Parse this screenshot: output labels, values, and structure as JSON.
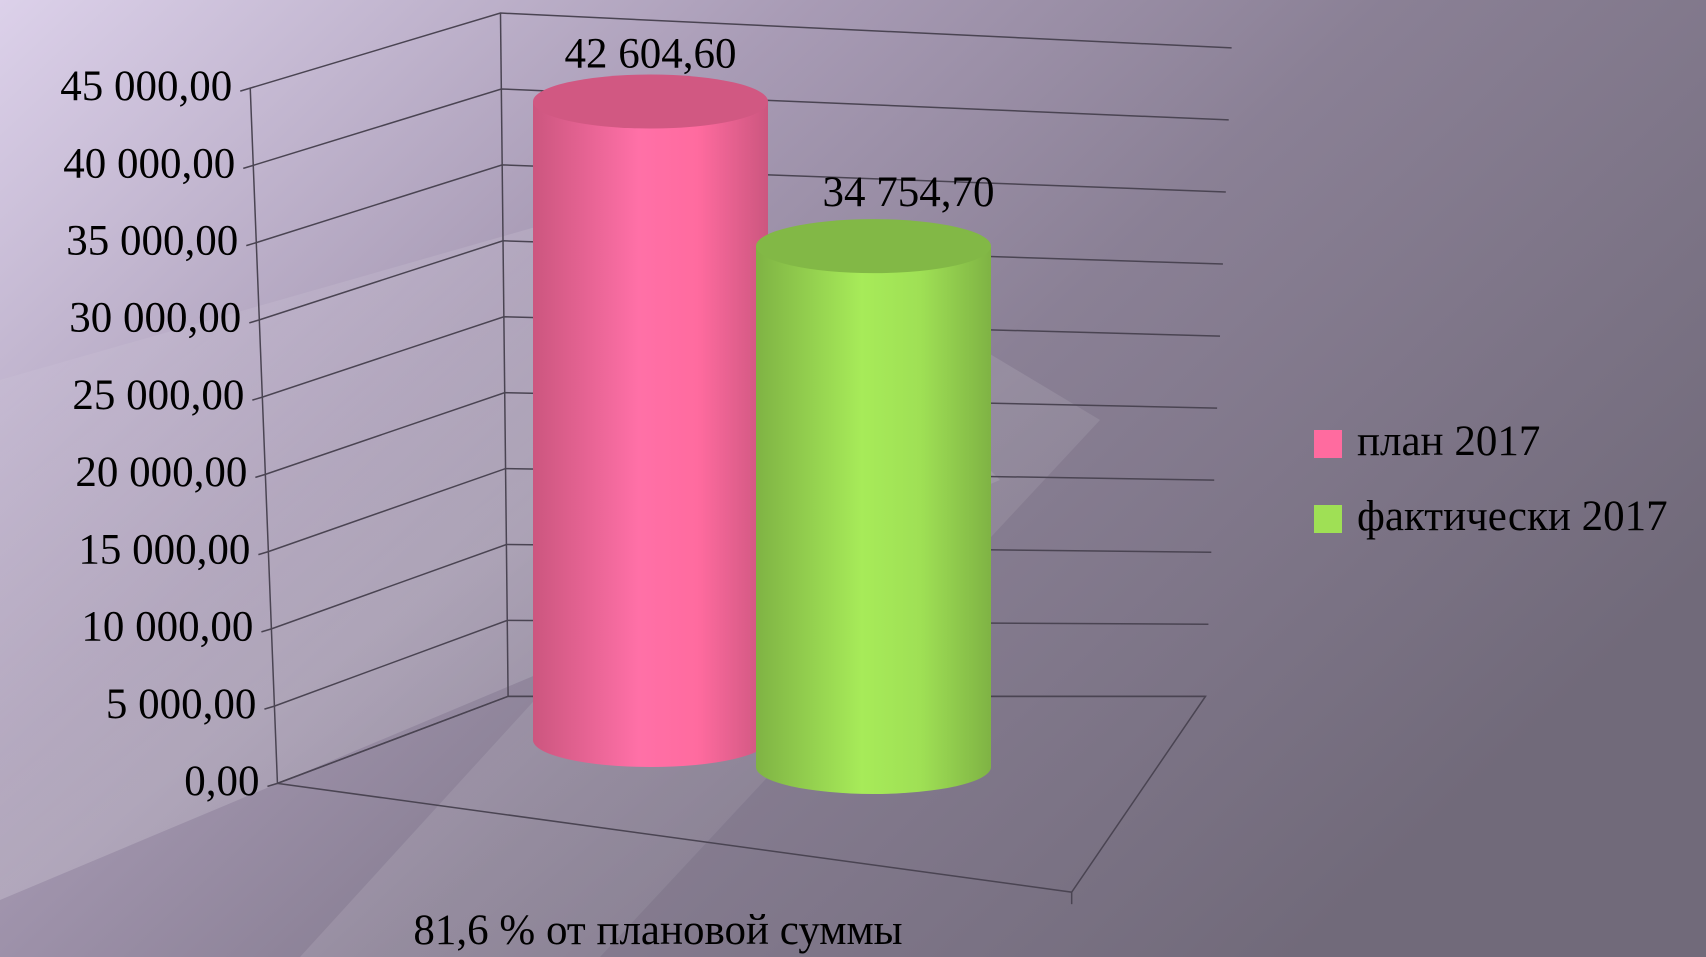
{
  "chart_data": {
    "type": "bar3d-cylinder",
    "categories": [
      "81,6 % от плановой суммы"
    ],
    "series": [
      {
        "name": "план 2017",
        "color": "#ff6b9f",
        "values": [
          42604.6
        ],
        "value_labels": [
          "42 604,60"
        ]
      },
      {
        "name": "фактически 2017",
        "color": "#9fe055",
        "values": [
          34754.7
        ],
        "value_labels": [
          "34 754,70"
        ]
      }
    ],
    "ylim": [
      0,
      45000
    ],
    "yticks": [
      {
        "value": 0,
        "label": "0,00"
      },
      {
        "value": 5000,
        "label": "5 000,00"
      },
      {
        "value": 10000,
        "label": "10 000,00"
      },
      {
        "value": 15000,
        "label": "15 000,00"
      },
      {
        "value": 20000,
        "label": "20 000,00"
      },
      {
        "value": 25000,
        "label": "25 000,00"
      },
      {
        "value": 30000,
        "label": "30 000,00"
      },
      {
        "value": 35000,
        "label": "35 000,00"
      },
      {
        "value": 40000,
        "label": "40 000,00"
      },
      {
        "value": 45000,
        "label": "45 000,00"
      }
    ],
    "grid": true,
    "legend": "right"
  }
}
